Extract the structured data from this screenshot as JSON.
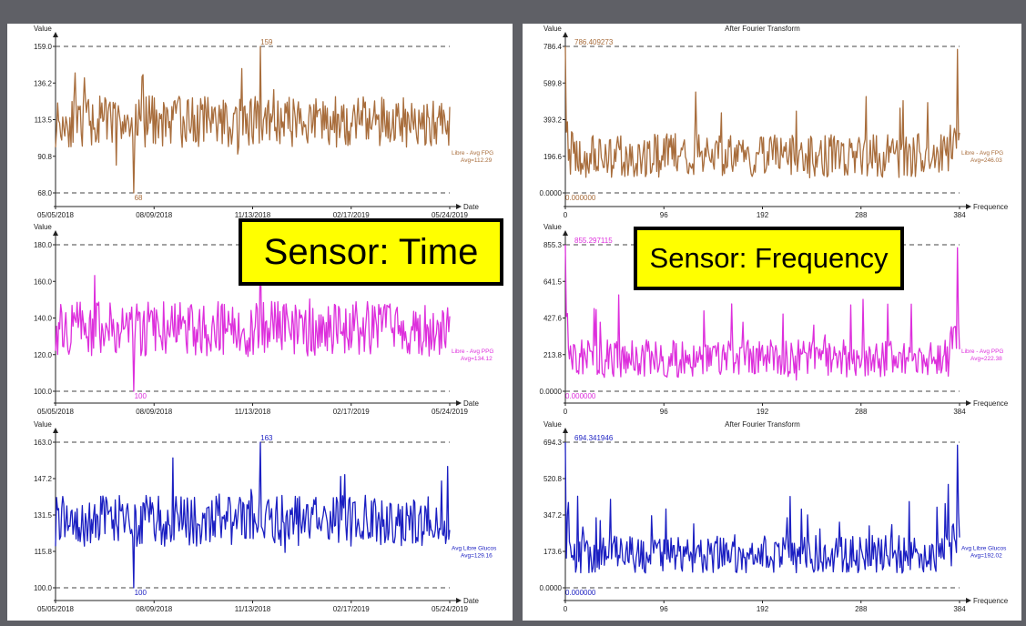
{
  "labels": {
    "time_label": "Sensor: Time",
    "freq_label": "Sensor: Frequency"
  },
  "chart_data": [
    {
      "type": "line",
      "panel": "time",
      "color": "#a86d3c",
      "ylabel": "Value",
      "xlabel": "Date",
      "yticks": [
        "68.0",
        "90.8",
        "113.5",
        "136.2",
        "159.0"
      ],
      "xticks": [
        "05/05/2018",
        "08/09/2018",
        "11/13/2018",
        "02/17/2019",
        "05/24/2019"
      ],
      "ylim": [
        68,
        159
      ],
      "max_label": "159",
      "min_label": "68",
      "legend": [
        "Libre - Avg FPG",
        "Avg=112.29"
      ],
      "n": 384,
      "seed": 11,
      "mean": 112.3,
      "amp": 16,
      "peak": 159,
      "trough": 68,
      "edge": 0,
      "spikes": 0
    },
    {
      "type": "line",
      "panel": "time",
      "color": "#dd2fdc",
      "ylabel": "Value",
      "xlabel": "Date",
      "yticks": [
        "100.0",
        "120.0",
        "140.0",
        "160.0",
        "180.0"
      ],
      "xticks": [
        "05/05/2018",
        "08/09/2018",
        "11/13/2018",
        "02/17/2019",
        "05/24/2019"
      ],
      "ylim": [
        100,
        180
      ],
      "max_label": "180",
      "min_label": "100",
      "legend": [
        "Libre - Avg PPG",
        "Avg=134.12"
      ],
      "n": 384,
      "seed": 23,
      "mean": 134,
      "amp": 15,
      "peak": 180,
      "trough": 100,
      "edge": 0,
      "spikes": 0
    },
    {
      "type": "line",
      "panel": "time",
      "color": "#1b1fc2",
      "ylabel": "Value",
      "xlabel": "Date",
      "yticks": [
        "100.0",
        "115.8",
        "131.5",
        "147.2",
        "163.0"
      ],
      "xticks": [
        "05/05/2018",
        "08/09/2018",
        "11/13/2018",
        "02/17/2019",
        "05/24/2019"
      ],
      "ylim": [
        100,
        163
      ],
      "max_label": "163",
      "min_label": "100",
      "legend": [
        "Avg Libre Glucos",
        "Avg=129.16"
      ],
      "n": 384,
      "seed": 37,
      "mean": 129,
      "amp": 11,
      "peak": 163,
      "trough": 100,
      "edge": 0,
      "spikes": 0
    },
    {
      "type": "line",
      "panel": "freq",
      "color": "#a86d3c",
      "title": "After Fourier Transform",
      "ylabel": "Value",
      "xlabel": "Frequence",
      "yticks": [
        "0.0000",
        "196.6",
        "393.2",
        "589.8",
        "786.4"
      ],
      "xticks": [
        "0",
        "96",
        "192",
        "288",
        "384"
      ],
      "ylim": [
        0,
        786.409273
      ],
      "max_label": "786.409273",
      "min_label": "0.000000",
      "legend": [
        "Libre - Avg FPG",
        "Avg=246.03"
      ],
      "n": 385,
      "seed": 51,
      "mean": 200,
      "amp": 120,
      "peak": 786,
      "trough": 0,
      "edge": 1,
      "spikes": 1
    },
    {
      "type": "line",
      "panel": "freq",
      "color": "#dd2fdc",
      "title": "",
      "ylabel": "Value",
      "xlabel": "Frequence",
      "yticks": [
        "0.0000",
        "213.8",
        "427.6",
        "641.5",
        "855.3"
      ],
      "xticks": [
        "0",
        "96",
        "192",
        "288",
        "384"
      ],
      "ylim": [
        0,
        855.297115
      ],
      "max_label": "855.297115",
      "min_label": "0.000000",
      "legend": [
        "Libre - Avg PPG",
        "Avg=222.38"
      ],
      "n": 385,
      "seed": 63,
      "mean": 190,
      "amp": 110,
      "peak": 855,
      "trough": 0,
      "edge": 1,
      "spikes": 1
    },
    {
      "type": "line",
      "panel": "freq",
      "color": "#1b1fc2",
      "title": "After Fourier Transform",
      "ylabel": "Value",
      "xlabel": "Frequence",
      "yticks": [
        "0.0000",
        "173.6",
        "347.2",
        "520.8",
        "694.3"
      ],
      "xticks": [
        "0",
        "96",
        "192",
        "288",
        "384"
      ],
      "ylim": [
        0,
        694.341946
      ],
      "max_label": "694.341946",
      "min_label": "0.000000",
      "legend": [
        "Avg Libre Glucos",
        "Avg=192.02"
      ],
      "n": 385,
      "seed": 77,
      "mean": 160,
      "amp": 90,
      "peak": 694,
      "trough": 0,
      "edge": 1,
      "spikes": 1
    }
  ]
}
